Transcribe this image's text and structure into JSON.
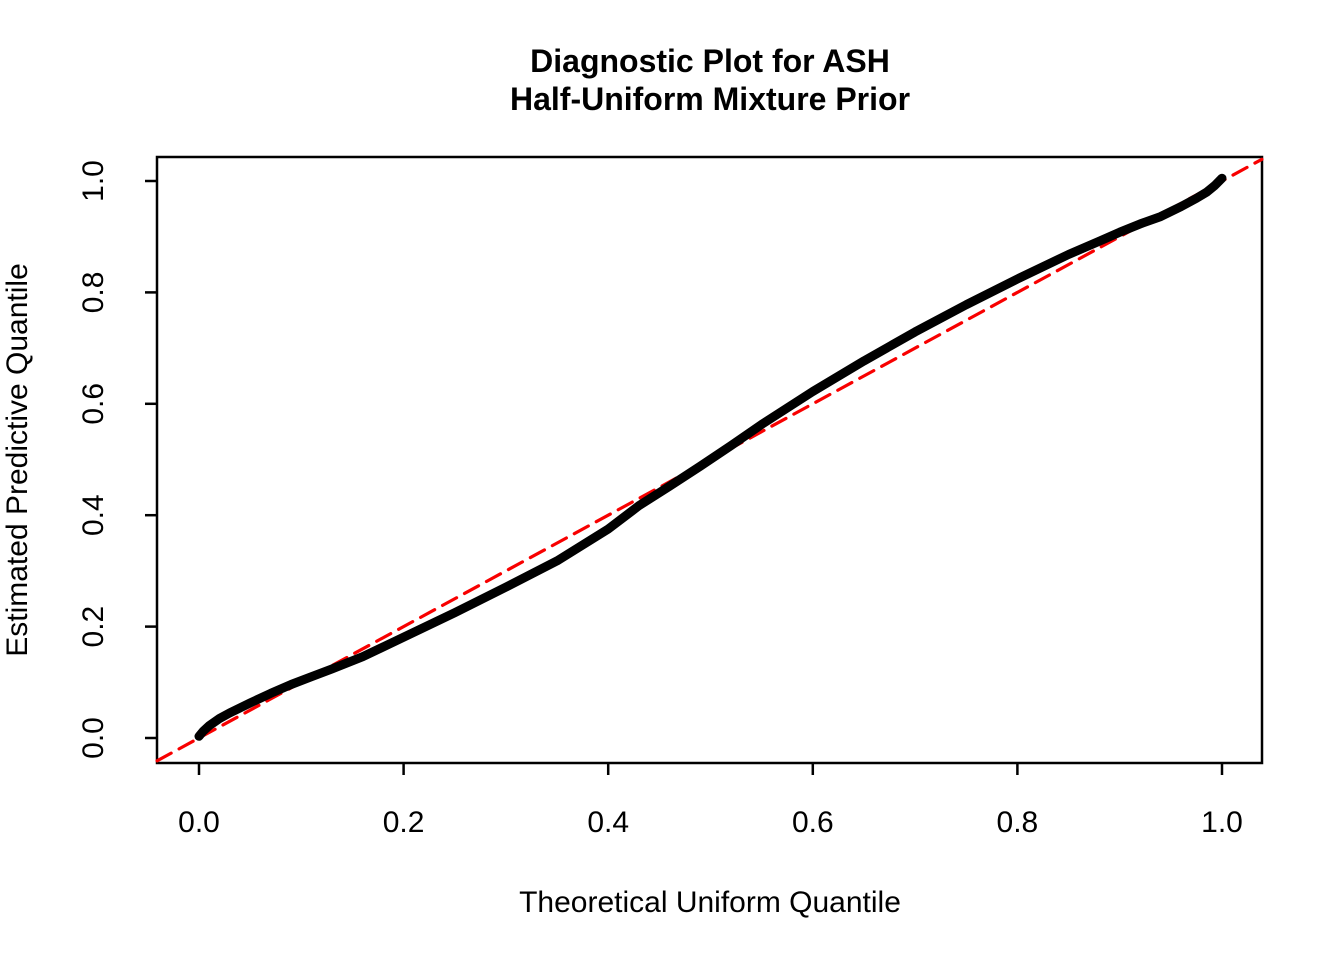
{
  "chart_data": {
    "type": "line",
    "title_lines": [
      "Diagnostic Plot for ASH",
      "Half-Uniform Mixture Prior"
    ],
    "xlabel": "Theoretical Uniform Quantile",
    "ylabel": "Estimated Predictive Quantile",
    "xlim": [
      -0.04,
      1.04
    ],
    "ylim": [
      -0.04,
      1.04
    ],
    "grid": false,
    "legend": "none",
    "x_ticks": [
      0.0,
      0.2,
      0.4,
      0.6,
      0.8,
      1.0
    ],
    "y_ticks": [
      0.0,
      0.2,
      0.4,
      0.6,
      0.8,
      1.0
    ],
    "x_tick_labels": [
      "0.0",
      "0.2",
      "0.4",
      "0.6",
      "0.8",
      "1.0"
    ],
    "y_tick_labels": [
      "0.0",
      "0.2",
      "0.4",
      "0.6",
      "0.8",
      "1.0"
    ],
    "colors": {
      "curve": "#000000",
      "reference_line": "#F80000",
      "axis": "#000000",
      "background": "#FFFFFF"
    },
    "series": [
      {
        "name": "estimated-vs-theoretical-quantile-curve",
        "type": "line",
        "color": "#000000",
        "line_width": 9,
        "style": "solid",
        "x": [
          0.0,
          0.004,
          0.01,
          0.02,
          0.03,
          0.05,
          0.07,
          0.09,
          0.11,
          0.13,
          0.16,
          0.2,
          0.25,
          0.3,
          0.35,
          0.4,
          0.43,
          0.46,
          0.49,
          0.52,
          0.55,
          0.6,
          0.65,
          0.7,
          0.75,
          0.8,
          0.85,
          0.88,
          0.9,
          0.92,
          0.94,
          0.96,
          0.975,
          0.985,
          0.993,
          1.0
        ],
        "y": [
          0.003,
          0.012,
          0.022,
          0.035,
          0.045,
          0.063,
          0.08,
          0.096,
          0.11,
          0.124,
          0.146,
          0.181,
          0.225,
          0.271,
          0.318,
          0.375,
          0.417,
          0.452,
          0.488,
          0.525,
          0.563,
          0.622,
          0.677,
          0.729,
          0.778,
          0.824,
          0.868,
          0.892,
          0.908,
          0.923,
          0.936,
          0.954,
          0.969,
          0.98,
          0.992,
          1.005
        ]
      },
      {
        "name": "identity-reference-line",
        "type": "line",
        "color": "#F80000",
        "line_width": 3.2,
        "style": "dashed",
        "x": [
          -0.041,
          1.039
        ],
        "y": [
          -0.041,
          1.039
        ]
      }
    ]
  }
}
